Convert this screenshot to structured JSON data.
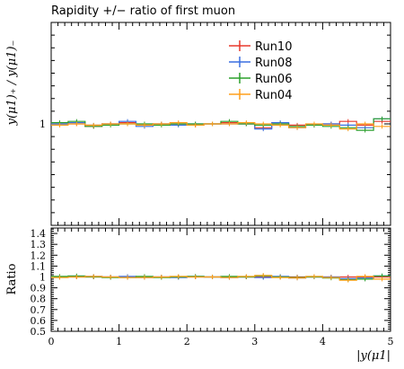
{
  "chart_data": [
    {
      "panel": "main",
      "type": "line",
      "title": "Rapidity +/− ratio of first muon",
      "ylabel": "y(μ1)₊ / y(μ1)₋",
      "ylim": [
        0.6,
        1.4
      ],
      "y_ticks": [
        "1"
      ],
      "x_bin_edges": [
        0,
        0.25,
        0.5,
        0.75,
        1.0,
        1.25,
        1.5,
        1.75,
        2.0,
        2.25,
        2.5,
        2.75,
        3.0,
        3.25,
        3.5,
        3.75,
        4.0,
        4.25,
        4.5,
        4.75,
        5.0
      ],
      "legend_position": "top-right",
      "series": [
        {
          "name": "Run10",
          "color": "#e8382b",
          "values": [
            1.0,
            1.0,
            0.99,
            1.0,
            1.005,
            0.995,
            1.0,
            1.0,
            0.995,
            1.0,
            1.005,
            1.0,
            0.985,
            1.0,
            0.995,
            0.995,
            1.0,
            1.01,
            0.995,
            1.01
          ]
        },
        {
          "name": "Run08",
          "color": "#3a6fe0",
          "values": [
            1.0,
            1.005,
            0.995,
            1.0,
            1.01,
            0.99,
            1.0,
            0.995,
            1.0,
            1.0,
            1.0,
            1.0,
            0.98,
            1.005,
            0.985,
            0.995,
            1.0,
            0.995,
            0.985,
            1.02
          ]
        },
        {
          "name": "Run06",
          "color": "#2ca02c",
          "values": [
            1.005,
            1.01,
            0.99,
            0.995,
            1.0,
            1.0,
            0.995,
            1.0,
            1.0,
            1.0,
            1.01,
            1.0,
            0.995,
            1.0,
            0.99,
            0.995,
            0.99,
            0.985,
            0.975,
            1.02
          ]
        },
        {
          "name": "Run04",
          "color": "#ff9f1c",
          "values": [
            0.995,
            1.0,
            0.995,
            1.0,
            1.0,
            0.995,
            1.0,
            1.005,
            0.995,
            1.0,
            1.0,
            1.005,
            1.0,
            0.995,
            0.985,
            1.0,
            0.995,
            0.98,
            1.0,
            0.99
          ]
        }
      ]
    },
    {
      "panel": "ratio",
      "type": "line",
      "ylabel": "Ratio",
      "xlabel": "|y(μ1|",
      "xlim": [
        0,
        5
      ],
      "ylim": [
        0.5,
        1.45
      ],
      "x_ticks": [
        "0",
        "1",
        "2",
        "3",
        "4",
        "5"
      ],
      "y_ticks": [
        "0.5",
        "0.6",
        "0.7",
        "0.8",
        "0.9",
        "1",
        "1.1",
        "1.2",
        "1.3",
        "1.4"
      ],
      "x_bin_edges": [
        0,
        0.25,
        0.5,
        0.75,
        1.0,
        1.25,
        1.5,
        1.75,
        2.0,
        2.25,
        2.5,
        2.75,
        3.0,
        3.25,
        3.5,
        3.75,
        4.0,
        4.25,
        4.5,
        4.75,
        5.0
      ],
      "series": [
        {
          "name": "Run10",
          "color": "#e8382b",
          "values": [
            1.0,
            1.0,
            1.0,
            1.0,
            1.0,
            1.0,
            1.0,
            1.0,
            1.0,
            1.0,
            1.0,
            1.0,
            1.0,
            1.0,
            1.0,
            1.0,
            1.0,
            1.0,
            1.0,
            1.0
          ]
        },
        {
          "name": "Run08",
          "color": "#3a6fe0",
          "values": [
            1.0,
            1.005,
            1.005,
            1.0,
            1.005,
            0.995,
            1.0,
            0.995,
            1.005,
            1.0,
            0.995,
            1.0,
            0.995,
            1.005,
            0.99,
            1.0,
            1.0,
            0.985,
            0.99,
            1.01
          ]
        },
        {
          "name": "Run06",
          "color": "#2ca02c",
          "values": [
            1.005,
            1.01,
            1.0,
            0.995,
            0.995,
            1.005,
            0.995,
            1.0,
            1.005,
            1.0,
            1.005,
            1.0,
            1.01,
            1.0,
            0.995,
            1.0,
            0.99,
            0.975,
            0.98,
            1.01
          ]
        },
        {
          "name": "Run04",
          "color": "#ff9f1c",
          "values": [
            0.995,
            1.0,
            1.005,
            1.0,
            0.995,
            0.995,
            1.0,
            1.005,
            1.0,
            1.0,
            0.995,
            1.005,
            1.015,
            0.995,
            0.99,
            1.005,
            0.995,
            0.97,
            1.005,
            0.98
          ]
        }
      ]
    }
  ],
  "legend": {
    "items": [
      {
        "label": "Run10",
        "color": "#e8382b"
      },
      {
        "label": "Run08",
        "color": "#3a6fe0"
      },
      {
        "label": "Run06",
        "color": "#2ca02c"
      },
      {
        "label": "Run04",
        "color": "#ff9f1c"
      }
    ]
  }
}
